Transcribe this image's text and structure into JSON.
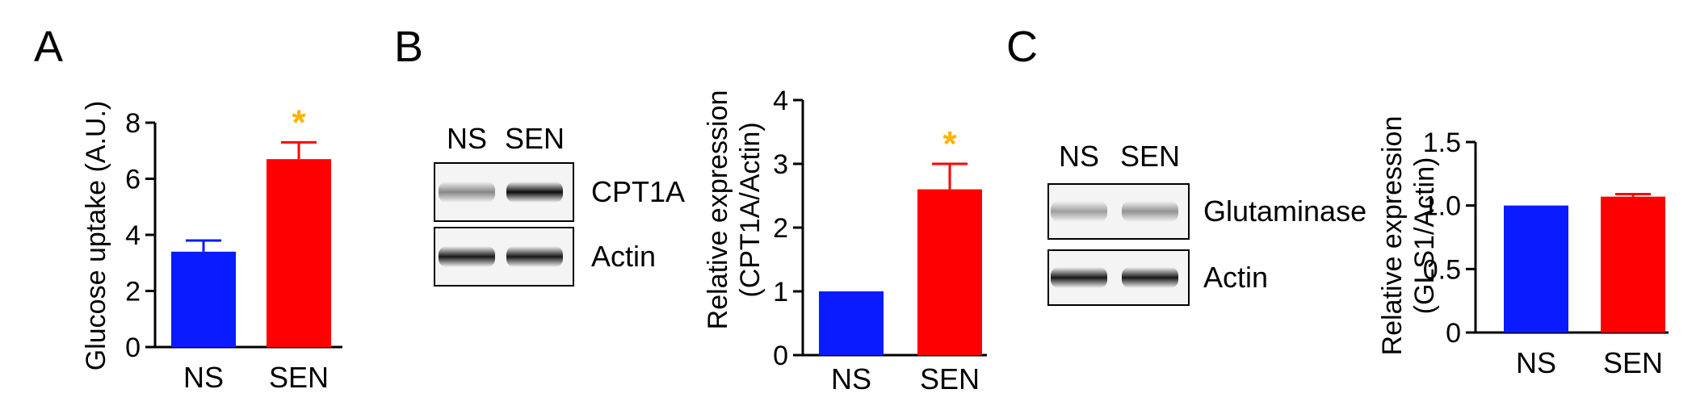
{
  "colors": {
    "ns": "#0a1bff",
    "sen": "#ff0000",
    "star": "#ffb400",
    "axis": "#000000"
  },
  "panels": [
    {
      "label": "A",
      "chart": {
        "type": "bar",
        "ylabel": "Glucose uptake (A.U.)",
        "ylim": [
          0,
          8
        ],
        "yticks": [
          0,
          2,
          4,
          6,
          8
        ],
        "categories": [
          "NS",
          "SEN"
        ],
        "values": [
          3.4,
          6.7
        ],
        "errors": [
          0.4,
          0.6
        ],
        "significance": [
          "",
          "*"
        ]
      }
    },
    {
      "label": "B",
      "blot": {
        "lanes": [
          "NS",
          "SEN"
        ],
        "bands": [
          {
            "name": "CPT1A",
            "intensity": [
              0.45,
              0.95
            ]
          },
          {
            "name": "Actin",
            "intensity": [
              0.9,
              0.9
            ]
          }
        ]
      },
      "chart": {
        "type": "bar",
        "ylabel_lines": [
          "Relative expression",
          "(CPT1A/Actin)"
        ],
        "ylim": [
          0,
          4
        ],
        "yticks": [
          0,
          1,
          2,
          3,
          4
        ],
        "categories": [
          "NS",
          "SEN"
        ],
        "values": [
          1.0,
          2.6
        ],
        "errors": [
          0,
          0.4
        ],
        "significance": [
          "",
          "*"
        ]
      }
    },
    {
      "label": "C",
      "blot": {
        "lanes": [
          "NS",
          "SEN"
        ],
        "bands": [
          {
            "name": "Glutaminase",
            "intensity": [
              0.35,
              0.4
            ]
          },
          {
            "name": "Actin",
            "intensity": [
              0.9,
              0.9
            ]
          }
        ]
      },
      "chart": {
        "type": "bar",
        "ylabel_lines": [
          "Relative expression",
          "(GLS1/Actin)"
        ],
        "ylim": [
          0,
          1.5
        ],
        "yticks": [
          "0",
          "0.5",
          "1.0",
          "1.5"
        ],
        "categories": [
          "NS",
          "SEN"
        ],
        "values": [
          1.0,
          1.07
        ],
        "errors": [
          0,
          0.02
        ],
        "significance": [
          "",
          ""
        ]
      }
    }
  ],
  "chart_data": [
    {
      "type": "bar",
      "title": "",
      "xlabel": "",
      "ylabel": "Glucose uptake (A.U.)",
      "categories": [
        "NS",
        "SEN"
      ],
      "values": [
        3.4,
        6.7
      ],
      "error_bars": [
        0.4,
        0.6
      ],
      "ylim": [
        0,
        8
      ],
      "annotations": [
        "*"
      ]
    },
    {
      "type": "bar",
      "title": "",
      "xlabel": "",
      "ylabel": "Relative expression (CPT1A/Actin)",
      "categories": [
        "NS",
        "SEN"
      ],
      "values": [
        1.0,
        2.6
      ],
      "error_bars": [
        0,
        0.4
      ],
      "ylim": [
        0,
        4
      ],
      "annotations": [
        "*"
      ]
    },
    {
      "type": "bar",
      "title": "",
      "xlabel": "",
      "ylabel": "Relative expression (GLS1/Actin)",
      "categories": [
        "NS",
        "SEN"
      ],
      "values": [
        1.0,
        1.07
      ],
      "error_bars": [
        0,
        0.02
      ],
      "ylim": [
        0,
        1.5
      ],
      "annotations": []
    }
  ]
}
